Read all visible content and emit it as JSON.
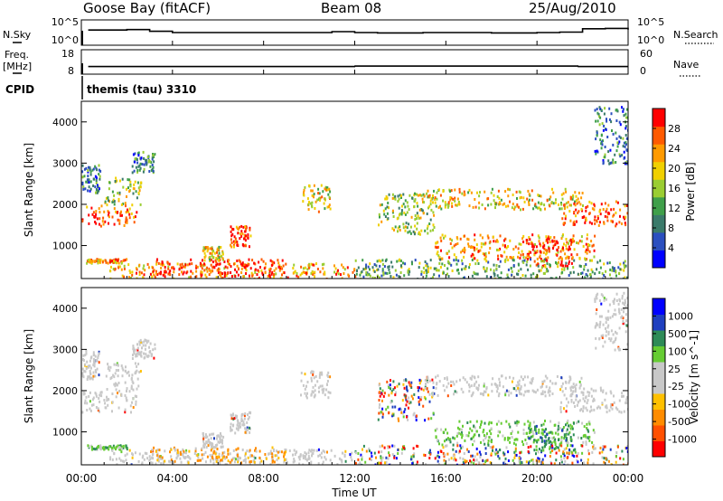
{
  "header": {
    "site": "Goose Bay (fitACF)",
    "beam": "Beam 08",
    "date": "25/Aug/2010"
  },
  "strip_labels": {
    "nsky": "N.Sky",
    "nsearch": "N.Search",
    "freq": "Freq.",
    "freq_unit": "[MHz]",
    "nave": "Nave",
    "cpid": "CPID",
    "cpid_value": "themis (tau) 3310"
  },
  "noise_axis": {
    "left_ticks": [
      "10^5",
      "10^0"
    ],
    "right_ticks": [
      "10^5",
      "10^0"
    ]
  },
  "freq_axis": {
    "left_ticks": [
      "18",
      "8"
    ],
    "right_ticks": [
      "60",
      "0"
    ]
  },
  "x_axis": {
    "label": "Time UT",
    "ticks": [
      "00:00",
      "04:00",
      "08:00",
      "12:00",
      "16:00",
      "20:00",
      "00:00"
    ],
    "range_hours": [
      0,
      24
    ]
  },
  "colors": {
    "gray": "#c8c8c8",
    "power_scale": [
      "#0000ff",
      "#2b4fbf",
      "#3a7a6a",
      "#3f9f4a",
      "#9acd32",
      "#f0d000",
      "#ff9a00",
      "#ff5a00",
      "#ff0000"
    ],
    "velocity_scale": [
      "#ff0000",
      "#ff5000",
      "#ff8c00",
      "#ffc000",
      "#c8c8c8",
      "#c8c8c8",
      "#66cc33",
      "#2e8b57",
      "#1f3fbf",
      "#0000ff"
    ]
  },
  "chart_data": [
    {
      "type": "line",
      "name": "noise",
      "x_unit": "hours UT",
      "x": [
        0.3,
        1,
        2,
        3,
        4,
        5,
        6,
        7,
        8,
        9,
        10,
        11,
        12,
        13,
        14,
        15,
        16,
        17,
        18,
        19,
        20,
        21,
        22,
        23,
        24
      ],
      "sky_log": [
        3.0,
        3.0,
        3.1,
        2.7,
        2.4,
        2.4,
        2.4,
        2.4,
        2.4,
        2.4,
        2.4,
        2.6,
        2.4,
        2.3,
        2.3,
        2.4,
        2.4,
        2.4,
        2.3,
        2.3,
        2.4,
        2.5,
        3.3,
        3.4,
        3.1
      ],
      "ylim": [
        0,
        5
      ]
    },
    {
      "type": "line",
      "name": "frequency",
      "x_unit": "hours UT",
      "x": [
        0.3,
        12,
        12.01,
        21.8,
        21.81,
        24
      ],
      "freq_mhz": [
        10.8,
        10.8,
        11.0,
        11.0,
        10.8,
        10.8
      ],
      "ylim": [
        8,
        18
      ],
      "nave_ylim": [
        0,
        60
      ]
    },
    {
      "type": "heatmap",
      "name": "power",
      "ylabel": "Slant Range [km]",
      "colorbar_label": "Power [dB]",
      "colorbar_ticks": [
        "4",
        "8",
        "12",
        "16",
        "20",
        "24",
        "28"
      ],
      "x_unit": "hours UT",
      "ylim": [
        200,
        4500
      ],
      "yticks": [
        "1000",
        "2000",
        "3000",
        "4000"
      ],
      "regions": [
        {
          "t0": 0.0,
          "t1": 2.4,
          "r0": 1500,
          "r1": 2000,
          "level": 7
        },
        {
          "t0": 1.0,
          "t1": 2.6,
          "r0": 2000,
          "r1": 2700,
          "level": 4
        },
        {
          "t0": 0.0,
          "t1": 0.8,
          "r0": 2300,
          "r1": 3000,
          "level": 2
        },
        {
          "t0": 2.2,
          "t1": 3.2,
          "r0": 2800,
          "r1": 3300,
          "level": 2
        },
        {
          "t0": 0.2,
          "t1": 2.0,
          "r0": 600,
          "r1": 700,
          "level": 6
        },
        {
          "t0": 1.2,
          "t1": 12.0,
          "r0": 220,
          "r1": 600,
          "level": 6
        },
        {
          "t0": 3.0,
          "t1": 9.0,
          "r0": 280,
          "r1": 700,
          "level": 8
        },
        {
          "t0": 6.5,
          "t1": 7.4,
          "r0": 1000,
          "r1": 1500,
          "level": 7
        },
        {
          "t0": 5.3,
          "t1": 6.2,
          "r0": 650,
          "r1": 1000,
          "level": 5
        },
        {
          "t0": 9.6,
          "t1": 10.9,
          "r0": 1850,
          "r1": 2500,
          "level": 5
        },
        {
          "t0": 13.0,
          "t1": 15.5,
          "r0": 1300,
          "r1": 2300,
          "level": 4
        },
        {
          "t0": 15.0,
          "t1": 22.0,
          "r0": 1900,
          "r1": 2400,
          "level": 5
        },
        {
          "t0": 21.0,
          "t1": 24.0,
          "r0": 1500,
          "r1": 2100,
          "level": 7
        },
        {
          "t0": 15.5,
          "t1": 22.5,
          "r0": 700,
          "r1": 1300,
          "level": 6
        },
        {
          "t0": 19.5,
          "t1": 21.5,
          "r0": 500,
          "r1": 1200,
          "level": 8
        },
        {
          "t0": 12.0,
          "t1": 24.0,
          "r0": 200,
          "r1": 700,
          "level": 3
        },
        {
          "t0": 22.5,
          "t1": 24.0,
          "r0": 3000,
          "r1": 4400,
          "level": 2
        }
      ]
    },
    {
      "type": "heatmap",
      "name": "velocity",
      "ylabel": "Slant Range [km]",
      "colorbar_label": "Velocity [m s^-1]",
      "colorbar_ticks": [
        "1000",
        "500",
        "100",
        "25",
        "-25",
        "-100",
        "-500",
        "-1000"
      ],
      "x_unit": "hours UT",
      "ylim": [
        200,
        4500
      ],
      "yticks": [
        "1000",
        "2000",
        "3000",
        "4000"
      ],
      "regions": [
        {
          "t0": 0.0,
          "t1": 2.4,
          "r0": 1500,
          "r1": 2000,
          "cls": "gray"
        },
        {
          "t0": 1.0,
          "t1": 2.6,
          "r0": 2000,
          "r1": 2700,
          "cls": "gray"
        },
        {
          "t0": 0.0,
          "t1": 0.8,
          "r0": 2300,
          "r1": 3000,
          "cls": "gray"
        },
        {
          "t0": 2.2,
          "t1": 3.2,
          "r0": 2800,
          "r1": 3300,
          "cls": "gray"
        },
        {
          "t0": 0.2,
          "t1": 2.0,
          "r0": 600,
          "r1": 700,
          "cls": "green"
        },
        {
          "t0": 1.2,
          "t1": 12.0,
          "r0": 220,
          "r1": 600,
          "cls": "gray"
        },
        {
          "t0": 3.0,
          "t1": 9.0,
          "r0": 280,
          "r1": 650,
          "cls": "orange"
        },
        {
          "t0": 6.5,
          "t1": 7.4,
          "r0": 1000,
          "r1": 1500,
          "cls": "gray"
        },
        {
          "t0": 5.3,
          "t1": 6.2,
          "r0": 650,
          "r1": 1000,
          "cls": "gray"
        },
        {
          "t0": 9.6,
          "t1": 10.9,
          "r0": 1850,
          "r1": 2500,
          "cls": "gray"
        },
        {
          "t0": 13.0,
          "t1": 15.5,
          "r0": 1300,
          "r1": 2300,
          "cls": "mixed"
        },
        {
          "t0": 15.0,
          "t1": 22.0,
          "r0": 1900,
          "r1": 2400,
          "cls": "gray"
        },
        {
          "t0": 21.0,
          "t1": 24.0,
          "r0": 1500,
          "r1": 2100,
          "cls": "gray"
        },
        {
          "t0": 15.5,
          "t1": 22.5,
          "r0": 700,
          "r1": 1300,
          "cls": "green"
        },
        {
          "t0": 19.5,
          "t1": 21.5,
          "r0": 500,
          "r1": 1200,
          "cls": "blue"
        },
        {
          "t0": 12.0,
          "t1": 24.0,
          "r0": 200,
          "r1": 700,
          "cls": "mixed"
        },
        {
          "t0": 22.5,
          "t1": 24.0,
          "r0": 3000,
          "r1": 4400,
          "cls": "gray"
        }
      ]
    }
  ]
}
